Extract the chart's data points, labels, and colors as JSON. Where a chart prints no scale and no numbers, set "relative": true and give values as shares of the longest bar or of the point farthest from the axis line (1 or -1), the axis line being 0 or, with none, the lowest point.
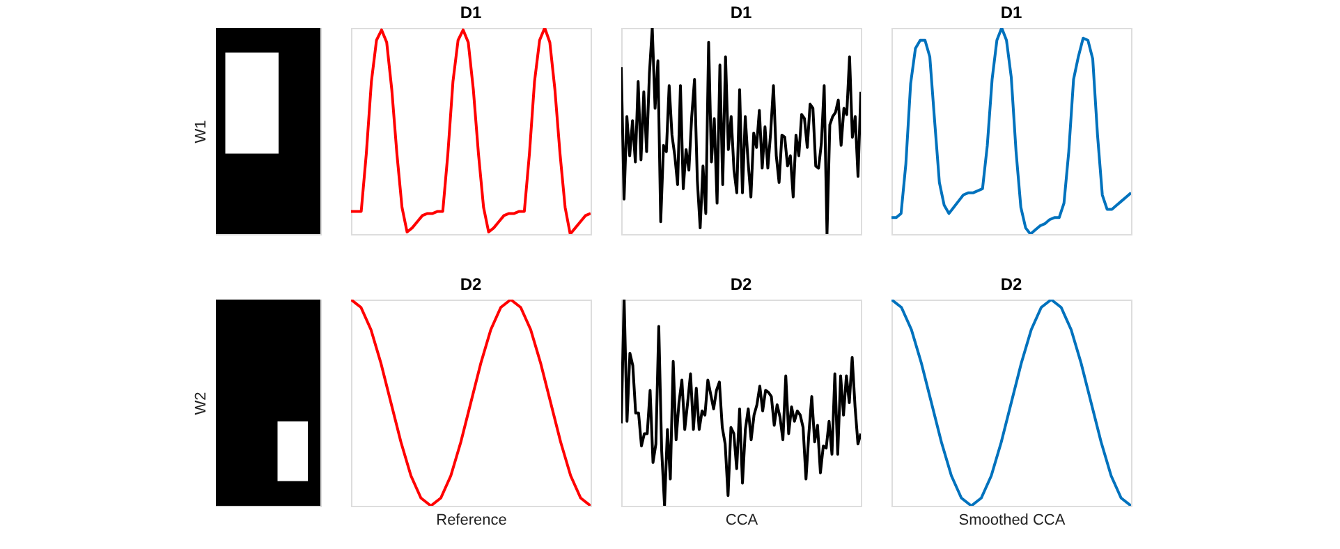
{
  "chart_data": [
    {
      "type": "other",
      "ylabel": "W1"
    },
    {
      "type": "line",
      "title": "D1",
      "relative": true,
      "tick_labels": false,
      "categories": [
        null,
        null,
        null,
        null,
        null,
        null,
        null,
        null,
        null,
        null,
        null,
        null,
        null,
        null,
        null,
        null,
        null,
        null,
        null,
        null,
        null,
        null,
        null,
        null,
        null,
        null,
        null,
        null,
        null,
        null,
        null,
        null,
        null,
        null,
        null,
        null,
        null,
        null,
        null,
        null,
        null,
        null,
        null,
        null,
        null,
        null,
        null,
        null
      ],
      "series": [
        {
          "color": "#ff0000",
          "values": [
            0.11,
            0.11,
            0.11,
            0.39,
            0.74,
            0.94,
            0.99,
            0.93,
            0.7,
            0.39,
            0.13,
            0.01,
            0.03,
            0.06,
            0.09,
            0.1,
            0.1,
            0.11,
            0.11,
            0.39,
            0.74,
            0.94,
            0.99,
            0.93,
            0.7,
            0.39,
            0.13,
            0.01,
            0.03,
            0.06,
            0.09,
            0.1,
            0.1,
            0.11,
            0.11,
            0.39,
            0.74,
            0.94,
            1.0,
            0.93,
            0.7,
            0.39,
            0.13,
            0,
            0.03,
            0.06,
            0.09,
            0.1
          ]
        }
      ]
    },
    {
      "type": "line",
      "title": "D1",
      "relative": true,
      "tick_labels": false,
      "categories": [
        null,
        null,
        null,
        null,
        null,
        null,
        null,
        null,
        null,
        null,
        null,
        null,
        null,
        null,
        null,
        null,
        null,
        null,
        null,
        null,
        null,
        null,
        null,
        null,
        null,
        null,
        null,
        null,
        null,
        null,
        null,
        null,
        null,
        null,
        null,
        null,
        null,
        null,
        null,
        null,
        null,
        null,
        null,
        null,
        null,
        null,
        null,
        null,
        null,
        null,
        null,
        null,
        null,
        null,
        null,
        null,
        null,
        null,
        null,
        null,
        null,
        null,
        null,
        null,
        null,
        null,
        null,
        null,
        null,
        null,
        null,
        null,
        null,
        null,
        null,
        null,
        null,
        null,
        null,
        null,
        null,
        null,
        null,
        null,
        null,
        null
      ],
      "series": [
        {
          "color": "#000000",
          "values": [
            0.81,
            0.17,
            0.57,
            0.38,
            0.55,
            0.35,
            0.74,
            0.36,
            0.69,
            0.4,
            0.78,
            1.0,
            0.61,
            0.84,
            0.06,
            0.43,
            0.4,
            0.72,
            0.48,
            0.38,
            0.24,
            0.72,
            0.22,
            0.41,
            0.31,
            0.57,
            0.75,
            0.26,
            0.03,
            0.33,
            0.1,
            0.93,
            0.35,
            0.56,
            0.15,
            0.82,
            0.24,
            0.86,
            0.41,
            0.57,
            0.31,
            0.2,
            0.7,
            0.2,
            0.57,
            0.35,
            0.18,
            0.49,
            0.42,
            0.6,
            0.32,
            0.52,
            0.32,
            0.49,
            0.72,
            0.38,
            0.25,
            0.48,
            0.47,
            0.33,
            0.38,
            0.18,
            0.48,
            0.38,
            0.58,
            0.56,
            0.42,
            0.63,
            0.61,
            0.33,
            0.32,
            0.44,
            0.72,
            0,
            0.53,
            0.57,
            0.59,
            0.65,
            0.43,
            0.61,
            0.58,
            0.86,
            0.47,
            0.57,
            0.28,
            0.69
          ]
        }
      ]
    },
    {
      "type": "line",
      "title": "D1",
      "relative": true,
      "tick_labels": false,
      "categories": [
        null,
        null,
        null,
        null,
        null,
        null,
        null,
        null,
        null,
        null,
        null,
        null,
        null,
        null,
        null,
        null,
        null,
        null,
        null,
        null,
        null,
        null,
        null,
        null,
        null,
        null,
        null,
        null,
        null,
        null,
        null,
        null,
        null,
        null,
        null,
        null,
        null,
        null,
        null,
        null,
        null,
        null,
        null,
        null,
        null,
        null,
        null,
        null,
        null,
        null,
        null
      ],
      "series": [
        {
          "color": "#0072bd",
          "values": [
            0.08,
            0.08,
            0.1,
            0.34,
            0.73,
            0.9,
            0.94,
            0.94,
            0.86,
            0.55,
            0.25,
            0.14,
            0.1,
            0.13,
            0.16,
            0.19,
            0.2,
            0.2,
            0.21,
            0.22,
            0.43,
            0.75,
            0.94,
            1.0,
            0.94,
            0.76,
            0.4,
            0.13,
            0.03,
            0,
            0.02,
            0.04,
            0.05,
            0.07,
            0.08,
            0.08,
            0.15,
            0.4,
            0.75,
            0.86,
            0.95,
            0.94,
            0.85,
            0.48,
            0.19,
            0.12,
            0.12,
            0.14,
            0.16,
            0.18,
            0.2
          ]
        }
      ]
    },
    {
      "type": "other",
      "ylabel": "W2"
    },
    {
      "type": "line",
      "title": "D2",
      "xlabel": "Reference",
      "relative": true,
      "tick_labels": false,
      "categories": [
        null,
        null,
        null,
        null,
        null,
        null,
        null,
        null,
        null,
        null,
        null,
        null,
        null,
        null,
        null,
        null,
        null,
        null,
        null,
        null,
        null,
        null,
        null,
        null,
        null
      ],
      "series": [
        {
          "color": "#ff0000",
          "values": [
            1,
            0.962,
            0.854,
            0.691,
            0.5,
            0.309,
            0.146,
            0.038,
            0,
            0.038,
            0.146,
            0.309,
            0.5,
            0.691,
            0.854,
            0.962,
            1,
            0.962,
            0.854,
            0.691,
            0.5,
            0.309,
            0.146,
            0.038,
            0
          ]
        }
      ]
    },
    {
      "type": "line",
      "title": "D2",
      "xlabel": "CCA",
      "relative": true,
      "tick_labels": false,
      "categories": [
        null,
        null,
        null,
        null,
        null,
        null,
        null,
        null,
        null,
        null,
        null,
        null,
        null,
        null,
        null,
        null,
        null,
        null,
        null,
        null,
        null,
        null,
        null,
        null,
        null,
        null,
        null,
        null,
        null,
        null,
        null,
        null,
        null,
        null,
        null,
        null,
        null,
        null,
        null,
        null,
        null,
        null,
        null,
        null,
        null,
        null,
        null,
        null,
        null,
        null,
        null,
        null,
        null,
        null,
        null,
        null,
        null,
        null,
        null,
        null,
        null,
        null,
        null,
        null,
        null,
        null,
        null,
        null,
        null,
        null,
        null,
        null,
        null,
        null,
        null,
        null,
        null,
        null,
        null,
        null,
        null,
        null,
        null,
        null
      ],
      "series": [
        {
          "color": "#000000",
          "values": [
            0.4,
            1.0,
            0.41,
            0.74,
            0.68,
            0.45,
            0.45,
            0.29,
            0.35,
            0.35,
            0.56,
            0.21,
            0.3,
            0.87,
            0.27,
            0,
            0.37,
            0.13,
            0.7,
            0.32,
            0.5,
            0.61,
            0.37,
            0.5,
            0.64,
            0.37,
            0.57,
            0.37,
            0.46,
            0.44,
            0.61,
            0.54,
            0.47,
            0.56,
            0.6,
            0.38,
            0.3,
            0.05,
            0.38,
            0.35,
            0.18,
            0.47,
            0.11,
            0.37,
            0.47,
            0.32,
            0.44,
            0.49,
            0.58,
            0.46,
            0.56,
            0.55,
            0.53,
            0.39,
            0.49,
            0.43,
            0.32,
            0.63,
            0.35,
            0.48,
            0.41,
            0.46,
            0.44,
            0.38,
            0.13,
            0.35,
            0.53,
            0.31,
            0.39,
            0.16,
            0.29,
            0.28,
            0.41,
            0.25,
            0.64,
            0.25,
            0.63,
            0.44,
            0.63,
            0.5,
            0.72,
            0.48,
            0.3,
            0.35
          ]
        }
      ]
    },
    {
      "type": "line",
      "title": "D2",
      "xlabel": "Smoothed CCA",
      "relative": true,
      "tick_labels": false,
      "categories": [
        null,
        null,
        null,
        null,
        null,
        null,
        null,
        null,
        null,
        null,
        null,
        null,
        null,
        null,
        null,
        null,
        null,
        null,
        null,
        null,
        null,
        null,
        null,
        null,
        null
      ],
      "series": [
        {
          "color": "#0072bd",
          "values": [
            1,
            0.962,
            0.854,
            0.691,
            0.5,
            0.309,
            0.146,
            0.038,
            0,
            0.038,
            0.146,
            0.309,
            0.5,
            0.691,
            0.854,
            0.962,
            1,
            0.962,
            0.854,
            0.691,
            0.5,
            0.309,
            0.146,
            0.038,
            0
          ]
        }
      ]
    }
  ]
}
